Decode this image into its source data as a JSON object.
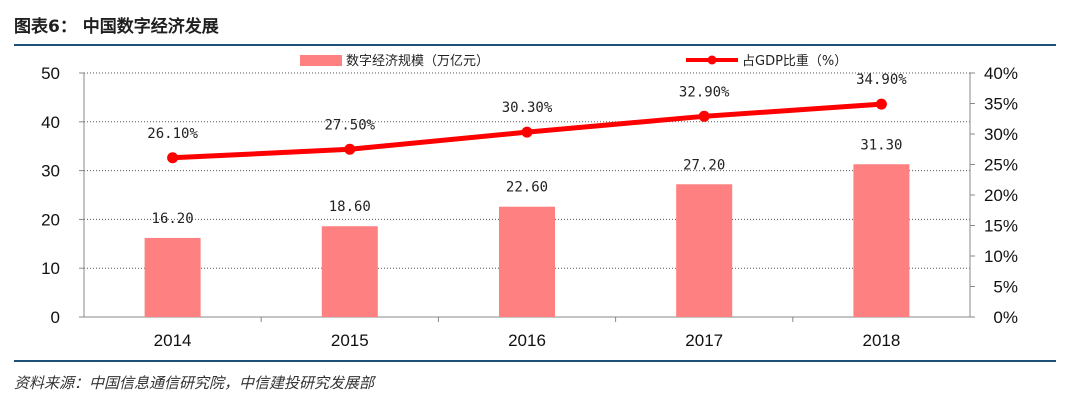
{
  "figure": {
    "title": "图表6：  中国数字经济发展",
    "source": "资料来源：中国信息通信研究院，中信建投研究发展部"
  },
  "colors": {
    "bar": "#ff8080",
    "line": "#ff0000",
    "rule": "#1f4e79"
  },
  "chart_data": {
    "type": "bar",
    "categories": [
      "2014",
      "2015",
      "2016",
      "2017",
      "2018"
    ],
    "series": [
      {
        "name": "数字经济规模（万亿元）",
        "type": "bar",
        "axis": "left",
        "values": [
          16.2,
          18.6,
          22.6,
          27.2,
          31.3
        ],
        "labels": [
          "16.20",
          "18.60",
          "22.60",
          "27.20",
          "31.30"
        ]
      },
      {
        "name": "占GDP比重（%）",
        "type": "line",
        "axis": "right",
        "values": [
          26.1,
          27.5,
          30.3,
          32.9,
          34.9
        ],
        "labels": [
          "26.10%",
          "27.50%",
          "30.30%",
          "32.90%",
          "34.90%"
        ]
      }
    ],
    "y_left": {
      "ylim": [
        0,
        50
      ],
      "ticks": [
        "0",
        "10",
        "20",
        "30",
        "40",
        "50"
      ]
    },
    "y_right": {
      "ylim": [
        0,
        40
      ],
      "ticks": [
        "0%",
        "5%",
        "10%",
        "15%",
        "20%",
        "25%",
        "30%",
        "35%",
        "40%"
      ]
    },
    "grid": true,
    "legend": "top"
  }
}
